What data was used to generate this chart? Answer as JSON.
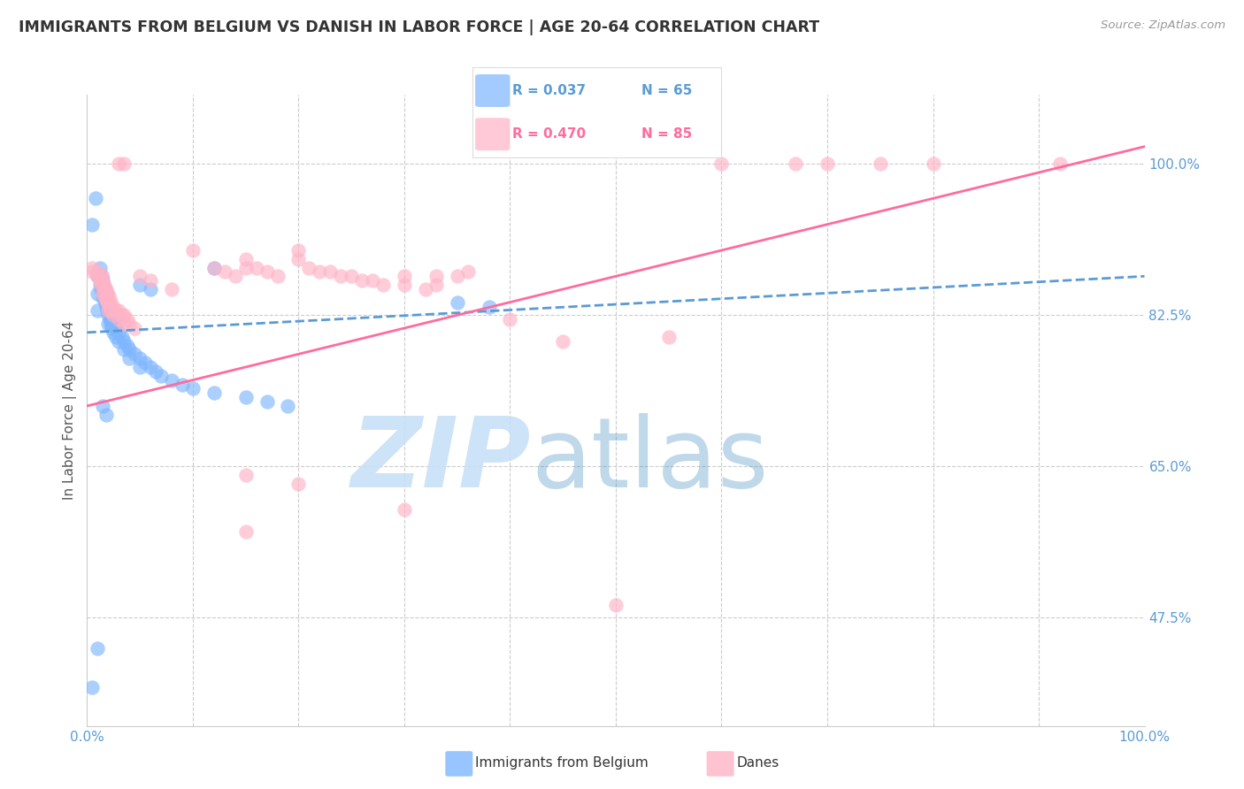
{
  "title": "IMMIGRANTS FROM BELGIUM VS DANISH IN LABOR FORCE | AGE 20-64 CORRELATION CHART",
  "source": "Source: ZipAtlas.com",
  "ylabel": "In Labor Force | Age 20-64",
  "xlim": [
    0.0,
    1.0
  ],
  "ylim": [
    0.35,
    1.08
  ],
  "belgium_color": "#7EB6FF",
  "danes_color": "#FFB3C6",
  "regression_belgium_color": "#5B9BD5",
  "regression_danes_color": "#FF6B9D",
  "background_color": "#FFFFFF",
  "belgium_R": 0.037,
  "belgium_N": 65,
  "danes_R": 0.47,
  "danes_N": 85,
  "belgium_points": [
    [
      0.005,
      0.395
    ],
    [
      0.01,
      0.44
    ],
    [
      0.005,
      0.93
    ],
    [
      0.008,
      0.96
    ],
    [
      0.01,
      0.87
    ],
    [
      0.01,
      0.85
    ],
    [
      0.01,
      0.83
    ],
    [
      0.012,
      0.88
    ],
    [
      0.012,
      0.86
    ],
    [
      0.013,
      0.87
    ],
    [
      0.013,
      0.855
    ],
    [
      0.015,
      0.865
    ],
    [
      0.015,
      0.855
    ],
    [
      0.015,
      0.845
    ],
    [
      0.016,
      0.855
    ],
    [
      0.016,
      0.845
    ],
    [
      0.017,
      0.85
    ],
    [
      0.017,
      0.84
    ],
    [
      0.018,
      0.845
    ],
    [
      0.018,
      0.835
    ],
    [
      0.019,
      0.84
    ],
    [
      0.019,
      0.83
    ],
    [
      0.02,
      0.835
    ],
    [
      0.02,
      0.825
    ],
    [
      0.02,
      0.815
    ],
    [
      0.021,
      0.83
    ],
    [
      0.021,
      0.82
    ],
    [
      0.022,
      0.825
    ],
    [
      0.022,
      0.815
    ],
    [
      0.023,
      0.82
    ],
    [
      0.023,
      0.81
    ],
    [
      0.025,
      0.815
    ],
    [
      0.025,
      0.805
    ],
    [
      0.027,
      0.81
    ],
    [
      0.027,
      0.8
    ],
    [
      0.03,
      0.805
    ],
    [
      0.03,
      0.795
    ],
    [
      0.033,
      0.8
    ],
    [
      0.035,
      0.795
    ],
    [
      0.035,
      0.785
    ],
    [
      0.038,
      0.79
    ],
    [
      0.04,
      0.785
    ],
    [
      0.04,
      0.775
    ],
    [
      0.045,
      0.78
    ],
    [
      0.05,
      0.775
    ],
    [
      0.05,
      0.765
    ],
    [
      0.055,
      0.77
    ],
    [
      0.06,
      0.765
    ],
    [
      0.065,
      0.76
    ],
    [
      0.07,
      0.755
    ],
    [
      0.08,
      0.75
    ],
    [
      0.09,
      0.745
    ],
    [
      0.1,
      0.74
    ],
    [
      0.12,
      0.88
    ],
    [
      0.12,
      0.735
    ],
    [
      0.15,
      0.73
    ],
    [
      0.17,
      0.725
    ],
    [
      0.19,
      0.72
    ],
    [
      0.35,
      0.84
    ],
    [
      0.38,
      0.835
    ],
    [
      0.05,
      0.86
    ],
    [
      0.06,
      0.855
    ],
    [
      0.015,
      0.72
    ],
    [
      0.018,
      0.71
    ]
  ],
  "danes_points": [
    [
      0.005,
      0.88
    ],
    [
      0.005,
      0.875
    ],
    [
      0.01,
      0.875
    ],
    [
      0.01,
      0.87
    ],
    [
      0.012,
      0.87
    ],
    [
      0.012,
      0.865
    ],
    [
      0.013,
      0.865
    ],
    [
      0.013,
      0.86
    ],
    [
      0.015,
      0.87
    ],
    [
      0.015,
      0.86
    ],
    [
      0.015,
      0.85
    ],
    [
      0.016,
      0.86
    ],
    [
      0.016,
      0.85
    ],
    [
      0.017,
      0.855
    ],
    [
      0.017,
      0.845
    ],
    [
      0.018,
      0.855
    ],
    [
      0.018,
      0.845
    ],
    [
      0.019,
      0.85
    ],
    [
      0.019,
      0.84
    ],
    [
      0.02,
      0.85
    ],
    [
      0.02,
      0.84
    ],
    [
      0.02,
      0.83
    ],
    [
      0.021,
      0.845
    ],
    [
      0.021,
      0.835
    ],
    [
      0.022,
      0.84
    ],
    [
      0.022,
      0.83
    ],
    [
      0.025,
      0.835
    ],
    [
      0.025,
      0.825
    ],
    [
      0.027,
      0.83
    ],
    [
      0.03,
      0.83
    ],
    [
      0.03,
      0.82
    ],
    [
      0.033,
      0.825
    ],
    [
      0.035,
      0.825
    ],
    [
      0.035,
      0.815
    ],
    [
      0.038,
      0.82
    ],
    [
      0.04,
      0.815
    ],
    [
      0.045,
      0.81
    ],
    [
      0.05,
      0.87
    ],
    [
      0.06,
      0.865
    ],
    [
      0.08,
      0.855
    ],
    [
      0.1,
      0.9
    ],
    [
      0.12,
      0.88
    ],
    [
      0.13,
      0.875
    ],
    [
      0.14,
      0.87
    ],
    [
      0.15,
      0.89
    ],
    [
      0.15,
      0.88
    ],
    [
      0.16,
      0.88
    ],
    [
      0.17,
      0.875
    ],
    [
      0.18,
      0.87
    ],
    [
      0.2,
      0.9
    ],
    [
      0.2,
      0.89
    ],
    [
      0.21,
      0.88
    ],
    [
      0.22,
      0.875
    ],
    [
      0.23,
      0.875
    ],
    [
      0.24,
      0.87
    ],
    [
      0.25,
      0.87
    ],
    [
      0.26,
      0.865
    ],
    [
      0.27,
      0.865
    ],
    [
      0.28,
      0.86
    ],
    [
      0.3,
      0.87
    ],
    [
      0.3,
      0.86
    ],
    [
      0.32,
      0.855
    ],
    [
      0.33,
      0.87
    ],
    [
      0.33,
      0.86
    ],
    [
      0.35,
      0.87
    ],
    [
      0.36,
      0.875
    ],
    [
      0.15,
      0.64
    ],
    [
      0.2,
      0.63
    ],
    [
      0.4,
      0.82
    ],
    [
      0.55,
      0.8
    ],
    [
      0.15,
      0.575
    ],
    [
      0.3,
      0.6
    ],
    [
      0.5,
      0.49
    ],
    [
      0.6,
      1.0
    ],
    [
      0.67,
      1.0
    ],
    [
      0.7,
      1.0
    ],
    [
      0.75,
      1.0
    ],
    [
      0.8,
      1.0
    ],
    [
      0.92,
      1.0
    ],
    [
      0.03,
      1.0
    ],
    [
      0.035,
      1.0
    ],
    [
      0.45,
      0.795
    ]
  ]
}
